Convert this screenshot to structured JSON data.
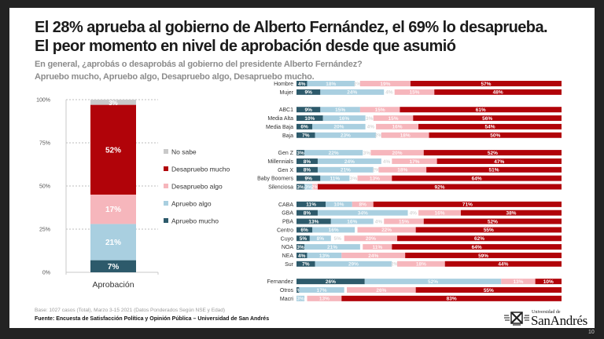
{
  "header": {
    "title_line1": "El 28% aprueba al gobierno de Alberto Fernández, el 69% lo desaprueba.",
    "title_line2": "El peor momento en nivel de aprobación desde que asumió",
    "subtitle_line1": "En general, ¿aprobás o desaprobás al gobierno del presidente Alberto Fernández?",
    "subtitle_line2": "Apruebo mucho, Apruebo algo, Desapruebo algo, Desapruebo mucho."
  },
  "footer": {
    "base": "Base: 1027 casos (Total), Marzo 3-15 2021 (Datos Ponderados Según NSE y Edad)",
    "source": "Fuente: Encuesta de Satisfacción Política y Opinión Pública – Universidad de San Andrés",
    "logo_small": "Universidad de",
    "logo_name": "SanAndrés",
    "page_number": "10"
  },
  "colors": {
    "apruebo_mucho": "#2d5a6b",
    "apruebo_algo": "#a9cfe0",
    "no_sabe_main": "#c9c9c9",
    "no_sabe_rows": "#ffffff",
    "desapruebo_algo": "#f6b6bc",
    "desapruebo_mucho": "#b10309"
  },
  "chart_data": [
    {
      "type": "bar",
      "stacked": true,
      "title": "",
      "categories": [
        "Aprobación"
      ],
      "xlabel": "",
      "ylabel": "",
      "ylim": [
        0,
        100
      ],
      "yticks": [
        "0%",
        "25%",
        "50%",
        "75%",
        "100%"
      ],
      "grid": true,
      "legend_position": "right",
      "series": [
        {
          "name": "Apruebo mucho",
          "key": "apruebo_mucho",
          "values": [
            7
          ],
          "label": "7%"
        },
        {
          "name": "Apruebo algo",
          "key": "apruebo_algo",
          "values": [
            21
          ],
          "label": "21%"
        },
        {
          "name": "Desapruebo algo",
          "key": "desapruebo_algo",
          "values": [
            17
          ],
          "label": "17%"
        },
        {
          "name": "Desapruebo mucho",
          "key": "desapruebo_mucho",
          "values": [
            52
          ],
          "label": "52%"
        },
        {
          "name": "No sabe",
          "key": "no_sabe_main",
          "values": [
            3
          ],
          "label": "3%"
        }
      ],
      "legend": [
        "No sabe",
        "Desapruebo mucho",
        "Desapruebo algo",
        "Apruebo algo",
        "Apruebo mucho"
      ]
    },
    {
      "type": "bar",
      "orientation": "horizontal",
      "stacked": true,
      "xlim": [
        0,
        100
      ],
      "segment_order": [
        "Apruebo mucho",
        "Apruebo algo",
        "No sabe",
        "Desapruebo algo",
        "Desapruebo mucho"
      ],
      "groups": [
        {
          "rows": [
            {
              "label": "Hombre",
              "values": [
                4,
                18,
                2,
                19,
                57
              ]
            },
            {
              "label": "Mujer",
              "values": [
                9,
                24,
                4,
                15,
                48
              ]
            }
          ]
        },
        {
          "rows": [
            {
              "label": "ABC1",
              "values": [
                9,
                15,
                0,
                15,
                61
              ]
            },
            {
              "label": "Media Alta",
              "values": [
                10,
                16,
                3,
                15,
                56
              ]
            },
            {
              "label": "Media Baja",
              "values": [
                6,
                20,
                4,
                16,
                54
              ]
            },
            {
              "label": "Baja",
              "values": [
                7,
                23,
                2,
                18,
                50
              ]
            }
          ]
        },
        {
          "rows": [
            {
              "label": "Gen Z",
              "values": [
                3,
                22,
                3,
                20,
                52
              ]
            },
            {
              "label": "Millennials",
              "values": [
                8,
                24,
                4,
                17,
                47
              ]
            },
            {
              "label": "Gen X",
              "values": [
                8,
                21,
                2,
                18,
                51
              ]
            },
            {
              "label": "Baby Boomers",
              "values": [
                9,
                11,
                3,
                13,
                64
              ]
            },
            {
              "label": "Silenciosa",
              "values": [
                3,
                3,
                0,
                2,
                92
              ]
            }
          ]
        },
        {
          "rows": [
            {
              "label": "CABA",
              "values": [
                11,
                10,
                0,
                8,
                71
              ]
            },
            {
              "label": "GBA",
              "values": [
                8,
                34,
                4,
                16,
                38
              ]
            },
            {
              "label": "PBA",
              "values": [
                13,
                16,
                4,
                15,
                52
              ]
            },
            {
              "label": "Centro",
              "values": [
                6,
                16,
                1,
                22,
                55
              ]
            },
            {
              "label": "Cuyo",
              "values": [
                5,
                8,
                5,
                20,
                62
              ]
            },
            {
              "label": "NOA",
              "values": [
                3,
                21,
                1,
                11,
                64
              ]
            },
            {
              "label": "NEA",
              "values": [
                4,
                13,
                0,
                24,
                59
              ]
            },
            {
              "label": "Sur",
              "values": [
                7,
                29,
                2,
                18,
                44
              ]
            }
          ]
        },
        {
          "rows": [
            {
              "label": "Fernandez",
              "values": [
                26,
                52,
                0,
                13,
                10
              ]
            },
            {
              "label": "Otros",
              "values": [
                1,
                17,
                1,
                26,
                55
              ]
            },
            {
              "label": "Macri",
              "values": [
                0,
                3,
                1,
                13,
                83
              ]
            }
          ]
        }
      ]
    }
  ]
}
